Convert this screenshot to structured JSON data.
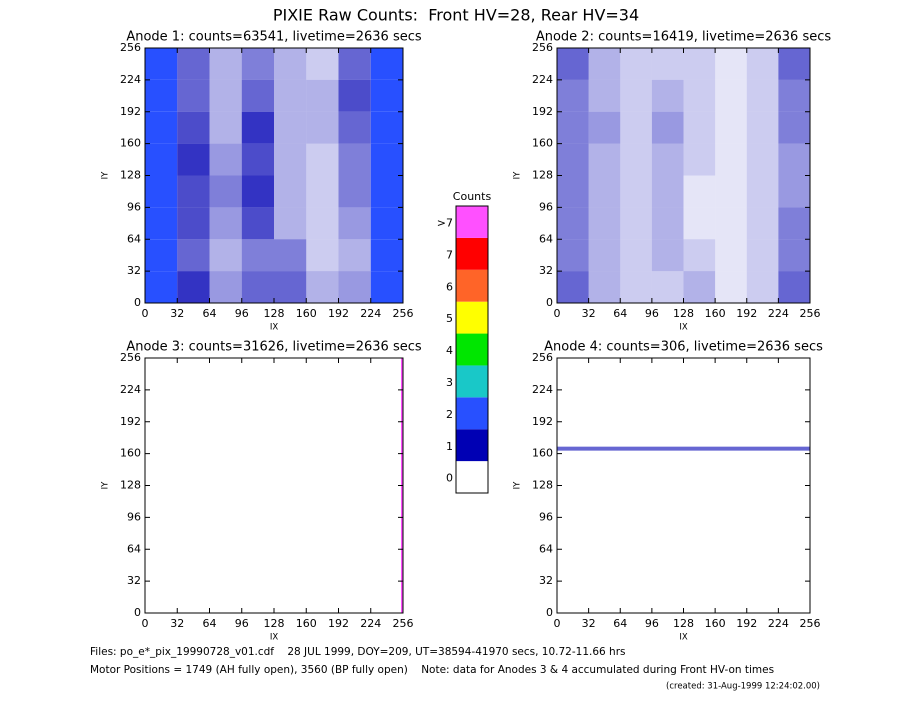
{
  "title": "PIXIE Raw Counts:  Front HV=28, Rear HV=34",
  "chart_data": [
    {
      "type": "heatmap",
      "title": "Anode 1: counts=63541, livetime=2636 secs",
      "xlabel": "IX",
      "ylabel": "IY",
      "xlim": [
        0,
        256
      ],
      "ylim": [
        0,
        256
      ],
      "xticks": [
        0,
        32,
        64,
        96,
        128,
        160,
        192,
        224,
        256
      ],
      "yticks": [
        0,
        32,
        64,
        96,
        128,
        160,
        192,
        224,
        256
      ],
      "xbins": [
        0,
        32,
        64,
        96,
        128,
        160,
        192,
        224,
        256
      ],
      "ybins": [
        0,
        32,
        64,
        96,
        128,
        160,
        192,
        224,
        256
      ],
      "z": [
        [
          1.9,
          0.8,
          0.4,
          0.6,
          0.6,
          0.3,
          0.4,
          1.4
        ],
        [
          1.8,
          0.6,
          0.3,
          0.5,
          0.5,
          0.2,
          0.3,
          1.3
        ],
        [
          1.7,
          0.7,
          0.4,
          0.7,
          0.3,
          0.2,
          0.4,
          1.4
        ],
        [
          1.8,
          0.7,
          0.5,
          0.8,
          0.3,
          0.2,
          0.5,
          1.5
        ],
        [
          1.7,
          0.8,
          0.4,
          0.7,
          0.3,
          0.2,
          0.5,
          1.5
        ],
        [
          1.8,
          0.7,
          0.3,
          0.8,
          0.3,
          0.3,
          0.6,
          1.4
        ],
        [
          1.6,
          0.6,
          0.3,
          0.6,
          0.3,
          0.3,
          0.7,
          1.3
        ],
        [
          1.5,
          0.6,
          0.3,
          0.5,
          0.3,
          0.2,
          0.6,
          1.2
        ]
      ]
    },
    {
      "type": "heatmap",
      "title": "Anode 2: counts=16419, livetime=2636 secs",
      "xlabel": "IX",
      "ylabel": "IY",
      "xlim": [
        0,
        256
      ],
      "ylim": [
        0,
        256
      ],
      "xticks": [
        0,
        32,
        64,
        96,
        128,
        160,
        192,
        224,
        256
      ],
      "yticks": [
        0,
        32,
        64,
        96,
        128,
        160,
        192,
        224,
        256
      ],
      "xbins": [
        0,
        32,
        64,
        96,
        128,
        160,
        192,
        224,
        256
      ],
      "ybins": [
        0,
        32,
        64,
        96,
        128,
        160,
        192,
        224,
        256
      ],
      "z": [
        [
          0.6,
          0.3,
          0.2,
          0.2,
          0.3,
          0.1,
          0.2,
          0.6
        ],
        [
          0.5,
          0.3,
          0.2,
          0.3,
          0.2,
          0.1,
          0.2,
          0.5
        ],
        [
          0.5,
          0.3,
          0.2,
          0.3,
          0.1,
          0.1,
          0.2,
          0.5
        ],
        [
          0.5,
          0.3,
          0.2,
          0.3,
          0.1,
          0.1,
          0.2,
          0.4
        ],
        [
          0.5,
          0.3,
          0.2,
          0.3,
          0.2,
          0.1,
          0.2,
          0.4
        ],
        [
          0.5,
          0.4,
          0.2,
          0.4,
          0.2,
          0.1,
          0.2,
          0.5
        ],
        [
          0.5,
          0.3,
          0.2,
          0.3,
          0.2,
          0.1,
          0.2,
          0.5
        ],
        [
          0.6,
          0.3,
          0.2,
          0.2,
          0.2,
          0.1,
          0.2,
          0.6
        ]
      ]
    },
    {
      "type": "heatmap",
      "title": "Anode 3: counts=31626, livetime=2636 secs",
      "xlabel": "IX",
      "ylabel": "IY",
      "xlim": [
        0,
        256
      ],
      "ylim": [
        0,
        256
      ],
      "xticks": [
        0,
        32,
        64,
        96,
        128,
        160,
        192,
        224,
        256
      ],
      "yticks": [
        0,
        32,
        64,
        96,
        128,
        160,
        192,
        224,
        256
      ],
      "xbins": [
        0,
        254,
        256
      ],
      "ybins": [
        0,
        256
      ],
      "z": [
        [
          0,
          8
        ]
      ]
    },
    {
      "type": "heatmap",
      "title": "Anode 4: counts=306, livetime=2636 secs",
      "xlabel": "IX",
      "ylabel": "IY",
      "xlim": [
        0,
        256
      ],
      "ylim": [
        0,
        256
      ],
      "xticks": [
        0,
        32,
        64,
        96,
        128,
        160,
        192,
        224,
        256
      ],
      "yticks": [
        0,
        32,
        64,
        96,
        128,
        160,
        192,
        224,
        256
      ],
      "xbins": [
        0,
        256
      ],
      "ybins": [
        0,
        163,
        167,
        256
      ],
      "z": [
        [
          0
        ],
        [
          0.6
        ],
        [
          0
        ]
      ]
    }
  ],
  "colorbar": {
    "title": "Counts",
    "labels": [
      "0",
      "1",
      "2",
      "3",
      "4",
      "5",
      "6",
      "7",
      ">7"
    ],
    "colors": [
      "#ffffff",
      "#0000b4",
      "#2850ff",
      "#19c8c8",
      "#00e600",
      "#ffff00",
      "#ff6428",
      "#ff0000",
      "#ff50ff"
    ]
  },
  "footer": {
    "files": "Files: po_e*_pix_19990728_v01.cdf    28 JUL 1999, DOY=209, UT=38594-41970 secs, 10.72-11.66 hrs",
    "motor": "Motor Positions = 1749 (AH fully open), 3560 (BP fully open)    Note: data for Anodes 3 & 4 accumulated during Front HV-on times",
    "created": "(created: 31-Aug-1999 12:24:02.00)"
  }
}
